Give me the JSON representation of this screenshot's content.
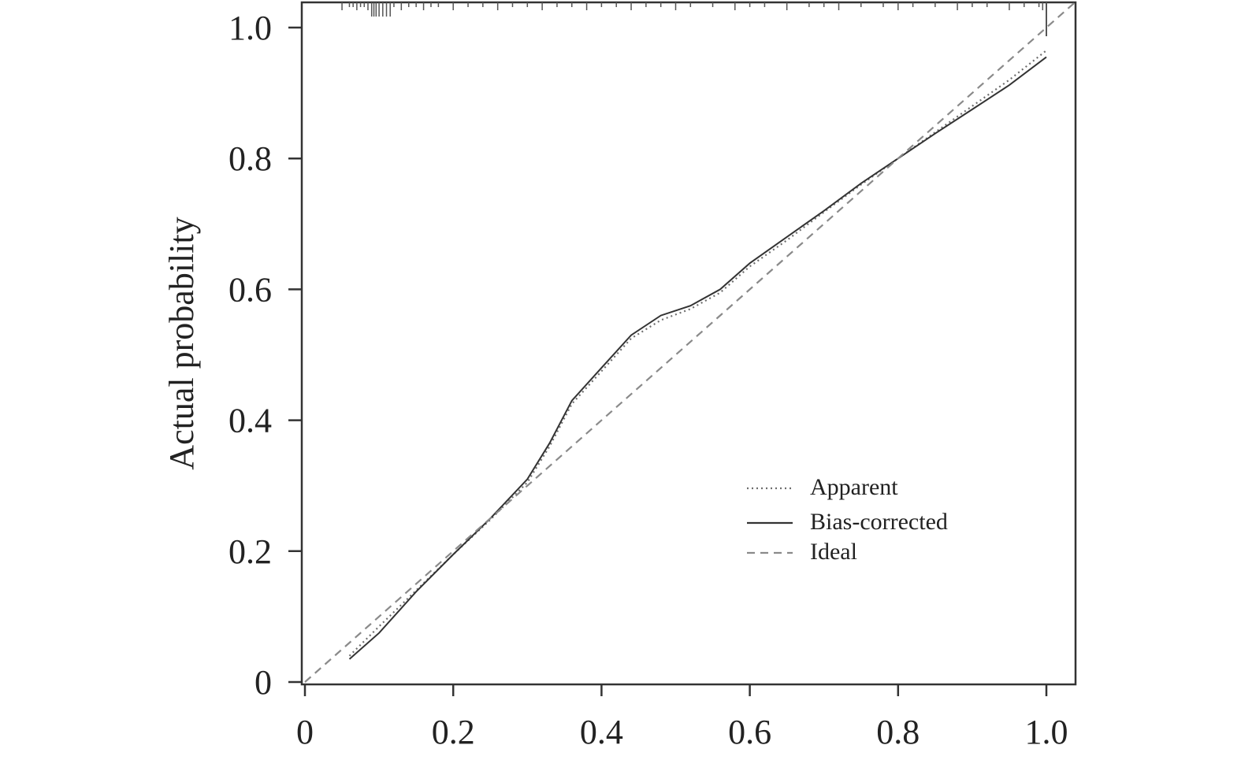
{
  "chart_data": {
    "type": "line",
    "title": "",
    "xlabel": "",
    "ylabel": "Actual probability",
    "xlim": [
      0,
      1.04
    ],
    "ylim": [
      0,
      1.04
    ],
    "x_ticks": [
      {
        "value": 0,
        "label": "0"
      },
      {
        "value": 0.2,
        "label": "0.2"
      },
      {
        "value": 0.4,
        "label": "0.4"
      },
      {
        "value": 0.6,
        "label": "0.6"
      },
      {
        "value": 0.8,
        "label": "0.8"
      },
      {
        "value": 1.0,
        "label": "1.0"
      }
    ],
    "y_ticks": [
      {
        "value": 0,
        "label": "0"
      },
      {
        "value": 0.2,
        "label": "0.2"
      },
      {
        "value": 0.4,
        "label": "0.4"
      },
      {
        "value": 0.6,
        "label": "0.6"
      },
      {
        "value": 0.8,
        "label": "0.8"
      },
      {
        "value": 1.0,
        "label": "1.0"
      }
    ],
    "grid": false,
    "legend_position": "bottom-right",
    "series": [
      {
        "name": "Apparent",
        "style": "dotted",
        "color": "#6e6e6e",
        "points": [
          [
            0.06,
            0.04
          ],
          [
            0.1,
            0.085
          ],
          [
            0.15,
            0.14
          ],
          [
            0.2,
            0.195
          ],
          [
            0.25,
            0.248
          ],
          [
            0.3,
            0.305
          ],
          [
            0.33,
            0.36
          ],
          [
            0.36,
            0.425
          ],
          [
            0.4,
            0.475
          ],
          [
            0.44,
            0.525
          ],
          [
            0.48,
            0.553
          ],
          [
            0.52,
            0.57
          ],
          [
            0.56,
            0.595
          ],
          [
            0.6,
            0.635
          ],
          [
            0.65,
            0.675
          ],
          [
            0.7,
            0.718
          ],
          [
            0.75,
            0.76
          ],
          [
            0.8,
            0.8
          ],
          [
            0.85,
            0.84
          ],
          [
            0.9,
            0.88
          ],
          [
            0.95,
            0.92
          ],
          [
            1.0,
            0.965
          ]
        ]
      },
      {
        "name": "Bias-corrected",
        "style": "solid",
        "color": "#333333",
        "points": [
          [
            0.06,
            0.035
          ],
          [
            0.1,
            0.075
          ],
          [
            0.15,
            0.138
          ],
          [
            0.2,
            0.195
          ],
          [
            0.25,
            0.25
          ],
          [
            0.3,
            0.31
          ],
          [
            0.33,
            0.365
          ],
          [
            0.36,
            0.43
          ],
          [
            0.4,
            0.48
          ],
          [
            0.44,
            0.53
          ],
          [
            0.48,
            0.56
          ],
          [
            0.52,
            0.575
          ],
          [
            0.56,
            0.6
          ],
          [
            0.6,
            0.64
          ],
          [
            0.65,
            0.68
          ],
          [
            0.7,
            0.72
          ],
          [
            0.75,
            0.762
          ],
          [
            0.8,
            0.8
          ],
          [
            0.85,
            0.838
          ],
          [
            0.9,
            0.875
          ],
          [
            0.95,
            0.912
          ],
          [
            1.0,
            0.955
          ]
        ]
      },
      {
        "name": "Ideal",
        "style": "dashed",
        "color": "#8a8a8a",
        "points": [
          [
            0,
            0
          ],
          [
            1.04,
            1.04
          ]
        ]
      }
    ]
  },
  "rug": {
    "color": "#555555",
    "top_positions": [
      0.05,
      0.06,
      0.065,
      0.07,
      0.075,
      0.08,
      0.085,
      0.09,
      0.093,
      0.096,
      0.1,
      0.105,
      0.11,
      0.115,
      0.12,
      0.13,
      0.14,
      0.15,
      0.16,
      0.17,
      0.18,
      0.2,
      0.22,
      0.24,
      0.26,
      0.28,
      0.3,
      0.32,
      0.34,
      0.36,
      0.38,
      0.4,
      0.42,
      0.44,
      0.46,
      0.48,
      0.5,
      0.52,
      0.55,
      0.58,
      0.6,
      0.62,
      0.65,
      0.68,
      0.7,
      0.72,
      0.75,
      0.78,
      0.8,
      0.82,
      0.85,
      0.88,
      0.9,
      0.92,
      0.95,
      0.97,
      0.99,
      0.995,
      1.0
    ]
  }
}
